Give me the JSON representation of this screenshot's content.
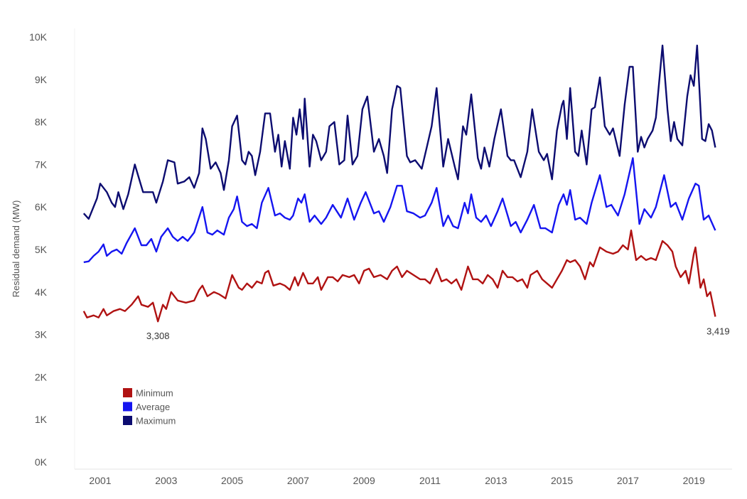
{
  "chart_data": {
    "type": "line",
    "title": "",
    "xlabel": "",
    "ylabel": "Residual demand (MW)",
    "ylim": [
      0,
      10
    ],
    "xlim": [
      2000.5,
      2019.7
    ],
    "grid": false,
    "legend_placement": "bottom-left",
    "y_ticks": [
      "0K",
      "1K",
      "2K",
      "3K",
      "4K",
      "5K",
      "6K",
      "7K",
      "8K",
      "9K",
      "10K"
    ],
    "x_ticks": [
      "2001",
      "2003",
      "2005",
      "2007",
      "2009",
      "2011",
      "2013",
      "2015",
      "2017",
      "2019"
    ],
    "annotations": [
      {
        "label": "3,308",
        "x": 2002.75,
        "y": 3.308
      },
      {
        "label": "3,419",
        "x": 2019.65,
        "y": 3.419
      }
    ],
    "series": [
      {
        "name": "Minimum",
        "color": "#b01212",
        "x": [
          2000.5,
          2000.6,
          2000.8,
          2000.95,
          2001.1,
          2001.2,
          2001.4,
          2001.6,
          2001.75,
          2001.95,
          2002.15,
          2002.25,
          2002.45,
          2002.6,
          2002.75,
          2002.9,
          2003.0,
          2003.15,
          2003.35,
          2003.6,
          2003.85,
          2004.0,
          2004.1,
          2004.25,
          2004.45,
          2004.6,
          2004.8,
          2005.0,
          2005.2,
          2005.3,
          2005.45,
          2005.6,
          2005.75,
          2005.9,
          2006.0,
          2006.1,
          2006.25,
          2006.45,
          2006.6,
          2006.75,
          2006.9,
          2007.0,
          2007.15,
          2007.3,
          2007.45,
          2007.6,
          2007.7,
          2007.9,
          2008.05,
          2008.2,
          2008.35,
          2008.55,
          2008.7,
          2008.85,
          2009.0,
          2009.15,
          2009.3,
          2009.5,
          2009.7,
          2009.85,
          2010.0,
          2010.15,
          2010.3,
          2010.5,
          2010.7,
          2010.85,
          2011.0,
          2011.2,
          2011.35,
          2011.5,
          2011.65,
          2011.8,
          2011.95,
          2012.15,
          2012.3,
          2012.45,
          2012.6,
          2012.75,
          2012.9,
          2013.05,
          2013.2,
          2013.35,
          2013.5,
          2013.65,
          2013.8,
          2013.95,
          2014.05,
          2014.25,
          2014.4,
          2014.55,
          2014.7,
          2014.85,
          2015.0,
          2015.15,
          2015.25,
          2015.4,
          2015.55,
          2015.7,
          2015.85,
          2015.95,
          2016.15,
          2016.35,
          2016.55,
          2016.7,
          2016.85,
          2017.0,
          2017.1,
          2017.25,
          2017.4,
          2017.55,
          2017.7,
          2017.85,
          2018.05,
          2018.2,
          2018.35,
          2018.45,
          2018.6,
          2018.75,
          2018.85,
          2019.0,
          2019.05,
          2019.2,
          2019.3,
          2019.4,
          2019.5,
          2019.65
        ],
        "y": [
          3.55,
          3.4,
          3.45,
          3.4,
          3.6,
          3.45,
          3.55,
          3.6,
          3.55,
          3.7,
          3.9,
          3.7,
          3.65,
          3.75,
          3.308,
          3.7,
          3.6,
          4.0,
          3.8,
          3.75,
          3.8,
          4.05,
          4.15,
          3.9,
          4.0,
          3.95,
          3.85,
          4.4,
          4.1,
          4.05,
          4.2,
          4.1,
          4.25,
          4.2,
          4.45,
          4.5,
          4.15,
          4.2,
          4.15,
          4.05,
          4.35,
          4.15,
          4.45,
          4.2,
          4.2,
          4.35,
          4.05,
          4.35,
          4.35,
          4.25,
          4.4,
          4.35,
          4.4,
          4.2,
          4.5,
          4.55,
          4.35,
          4.4,
          4.3,
          4.5,
          4.6,
          4.35,
          4.5,
          4.4,
          4.3,
          4.3,
          4.2,
          4.55,
          4.25,
          4.3,
          4.2,
          4.3,
          4.05,
          4.6,
          4.3,
          4.3,
          4.2,
          4.4,
          4.3,
          4.1,
          4.5,
          4.35,
          4.35,
          4.25,
          4.3,
          4.1,
          4.4,
          4.5,
          4.3,
          4.2,
          4.1,
          4.3,
          4.5,
          4.75,
          4.7,
          4.75,
          4.6,
          4.3,
          4.7,
          4.6,
          5.05,
          4.95,
          4.9,
          4.95,
          5.1,
          5.0,
          5.45,
          4.75,
          4.85,
          4.75,
          4.8,
          4.75,
          5.2,
          5.1,
          4.95,
          4.6,
          4.35,
          4.5,
          4.2,
          4.9,
          5.05,
          4.1,
          4.3,
          3.9,
          4.0,
          3.419
        ]
      },
      {
        "name": "Average",
        "color": "#1515f0",
        "x": [
          2000.5,
          2000.65,
          2000.8,
          2000.95,
          2001.1,
          2001.2,
          2001.35,
          2001.5,
          2001.65,
          2001.8,
          2002.05,
          2002.25,
          2002.4,
          2002.55,
          2002.7,
          2002.85,
          2003.05,
          2003.2,
          2003.35,
          2003.5,
          2003.65,
          2003.85,
          2004.1,
          2004.25,
          2004.4,
          2004.55,
          2004.75,
          2004.9,
          2005.05,
          2005.15,
          2005.3,
          2005.45,
          2005.6,
          2005.75,
          2005.9,
          2006.1,
          2006.3,
          2006.45,
          2006.6,
          2006.75,
          2006.85,
          2007.0,
          2007.1,
          2007.2,
          2007.35,
          2007.5,
          2007.7,
          2007.85,
          2008.05,
          2008.3,
          2008.5,
          2008.7,
          2008.9,
          2009.05,
          2009.3,
          2009.45,
          2009.6,
          2009.8,
          2010.0,
          2010.15,
          2010.3,
          2010.5,
          2010.7,
          2010.85,
          2011.05,
          2011.2,
          2011.4,
          2011.55,
          2011.7,
          2011.85,
          2012.05,
          2012.15,
          2012.25,
          2012.4,
          2012.55,
          2012.7,
          2012.85,
          2013.05,
          2013.2,
          2013.45,
          2013.6,
          2013.75,
          2013.95,
          2014.15,
          2014.35,
          2014.5,
          2014.7,
          2014.9,
          2015.05,
          2015.15,
          2015.25,
          2015.4,
          2015.55,
          2015.75,
          2015.9,
          2016.15,
          2016.35,
          2016.5,
          2016.7,
          2016.9,
          2017.15,
          2017.35,
          2017.5,
          2017.7,
          2017.85,
          2018.1,
          2018.3,
          2018.45,
          2018.65,
          2018.85,
          2019.05,
          2019.15,
          2019.3,
          2019.45,
          2019.65
        ],
        "y": [
          4.7,
          4.72,
          4.85,
          4.95,
          5.12,
          4.85,
          4.95,
          5.0,
          4.9,
          5.15,
          5.5,
          5.1,
          5.1,
          5.25,
          4.95,
          5.3,
          5.5,
          5.3,
          5.2,
          5.3,
          5.2,
          5.4,
          6.0,
          5.4,
          5.35,
          5.45,
          5.35,
          5.75,
          5.95,
          6.25,
          5.65,
          5.55,
          5.6,
          5.5,
          6.1,
          6.45,
          5.8,
          5.85,
          5.75,
          5.7,
          5.8,
          6.2,
          6.1,
          6.3,
          5.65,
          5.8,
          5.6,
          5.75,
          6.05,
          5.75,
          6.2,
          5.7,
          6.1,
          6.35,
          5.85,
          5.9,
          5.65,
          6.0,
          6.5,
          6.5,
          5.9,
          5.85,
          5.75,
          5.8,
          6.1,
          6.45,
          5.55,
          5.8,
          5.55,
          5.5,
          6.1,
          5.85,
          6.3,
          5.75,
          5.65,
          5.8,
          5.55,
          5.9,
          6.2,
          5.55,
          5.65,
          5.4,
          5.7,
          6.05,
          5.5,
          5.5,
          5.4,
          6.05,
          6.3,
          6.05,
          6.4,
          5.7,
          5.75,
          5.6,
          6.1,
          6.75,
          6.0,
          6.05,
          5.8,
          6.3,
          7.15,
          5.6,
          5.95,
          5.75,
          6.0,
          6.75,
          6.0,
          6.1,
          5.7,
          6.2,
          6.55,
          6.5,
          5.7,
          5.8,
          5.45
        ]
      },
      {
        "name": "Maximum",
        "color": "#0c0c70",
        "x": [
          2000.5,
          2000.65,
          2000.9,
          2001.0,
          2001.2,
          2001.35,
          2001.45,
          2001.55,
          2001.7,
          2001.85,
          2002.05,
          2002.3,
          2002.6,
          2002.7,
          2002.9,
          2003.05,
          2003.25,
          2003.35,
          2003.55,
          2003.7,
          2003.85,
          2004.0,
          2004.1,
          2004.2,
          2004.35,
          2004.5,
          2004.65,
          2004.75,
          2004.9,
          2005.0,
          2005.15,
          2005.3,
          2005.4,
          2005.5,
          2005.6,
          2005.7,
          2005.85,
          2006.0,
          2006.15,
          2006.3,
          2006.4,
          2006.5,
          2006.6,
          2006.75,
          2006.85,
          2006.95,
          2007.05,
          2007.15,
          2007.2,
          2007.35,
          2007.45,
          2007.55,
          2007.7,
          2007.85,
          2007.95,
          2008.1,
          2008.25,
          2008.4,
          2008.5,
          2008.65,
          2008.8,
          2008.95,
          2009.1,
          2009.3,
          2009.45,
          2009.6,
          2009.7,
          2009.85,
          2010.0,
          2010.1,
          2010.3,
          2010.4,
          2010.55,
          2010.75,
          2010.9,
          2011.05,
          2011.2,
          2011.4,
          2011.55,
          2011.75,
          2011.85,
          2012.0,
          2012.1,
          2012.25,
          2012.45,
          2012.55,
          2012.65,
          2012.8,
          2012.95,
          2013.15,
          2013.35,
          2013.45,
          2013.55,
          2013.75,
          2013.95,
          2014.1,
          2014.3,
          2014.45,
          2014.55,
          2014.7,
          2014.85,
          2015.0,
          2015.05,
          2015.15,
          2015.25,
          2015.4,
          2015.5,
          2015.6,
          2015.75,
          2015.9,
          2016.0,
          2016.15,
          2016.3,
          2016.45,
          2016.55,
          2016.75,
          2016.9,
          2017.05,
          2017.15,
          2017.3,
          2017.4,
          2017.5,
          2017.6,
          2017.75,
          2017.85,
          2018.05,
          2018.2,
          2018.3,
          2018.4,
          2018.5,
          2018.65,
          2018.8,
          2018.9,
          2019.0,
          2019.1,
          2019.25,
          2019.35,
          2019.45,
          2019.55,
          2019.65
        ],
        "y": [
          5.85,
          5.72,
          6.2,
          6.55,
          6.35,
          6.1,
          6.0,
          6.35,
          5.95,
          6.3,
          7.0,
          6.35,
          6.35,
          6.1,
          6.6,
          7.1,
          7.05,
          6.55,
          6.6,
          6.7,
          6.45,
          6.8,
          7.85,
          7.6,
          6.9,
          7.05,
          6.8,
          6.4,
          7.1,
          7.9,
          8.15,
          7.1,
          7.0,
          7.3,
          7.2,
          6.75,
          7.3,
          8.2,
          8.2,
          7.3,
          7.7,
          6.95,
          7.55,
          6.9,
          8.1,
          7.7,
          8.3,
          7.6,
          8.55,
          6.95,
          7.7,
          7.55,
          7.1,
          7.3,
          7.9,
          8.0,
          7.0,
          7.1,
          8.15,
          7.0,
          7.2,
          8.3,
          8.6,
          7.3,
          7.6,
          7.2,
          6.8,
          8.3,
          8.85,
          8.8,
          7.2,
          7.05,
          7.1,
          6.9,
          7.4,
          7.9,
          8.8,
          6.95,
          7.6,
          6.95,
          6.65,
          7.9,
          7.7,
          8.65,
          7.15,
          6.9,
          7.4,
          6.95,
          7.6,
          8.3,
          7.2,
          7.1,
          7.1,
          6.7,
          7.3,
          8.3,
          7.3,
          7.1,
          7.25,
          6.65,
          7.8,
          8.4,
          8.5,
          7.6,
          8.8,
          7.3,
          7.2,
          7.8,
          7.0,
          8.3,
          8.35,
          9.05,
          7.9,
          7.7,
          7.85,
          7.2,
          8.4,
          9.3,
          9.3,
          7.3,
          7.65,
          7.4,
          7.6,
          7.8,
          8.1,
          9.8,
          8.3,
          7.55,
          8.0,
          7.6,
          7.45,
          8.6,
          9.1,
          8.85,
          9.8,
          7.6,
          7.55,
          7.95,
          7.8,
          7.4
        ]
      }
    ]
  }
}
